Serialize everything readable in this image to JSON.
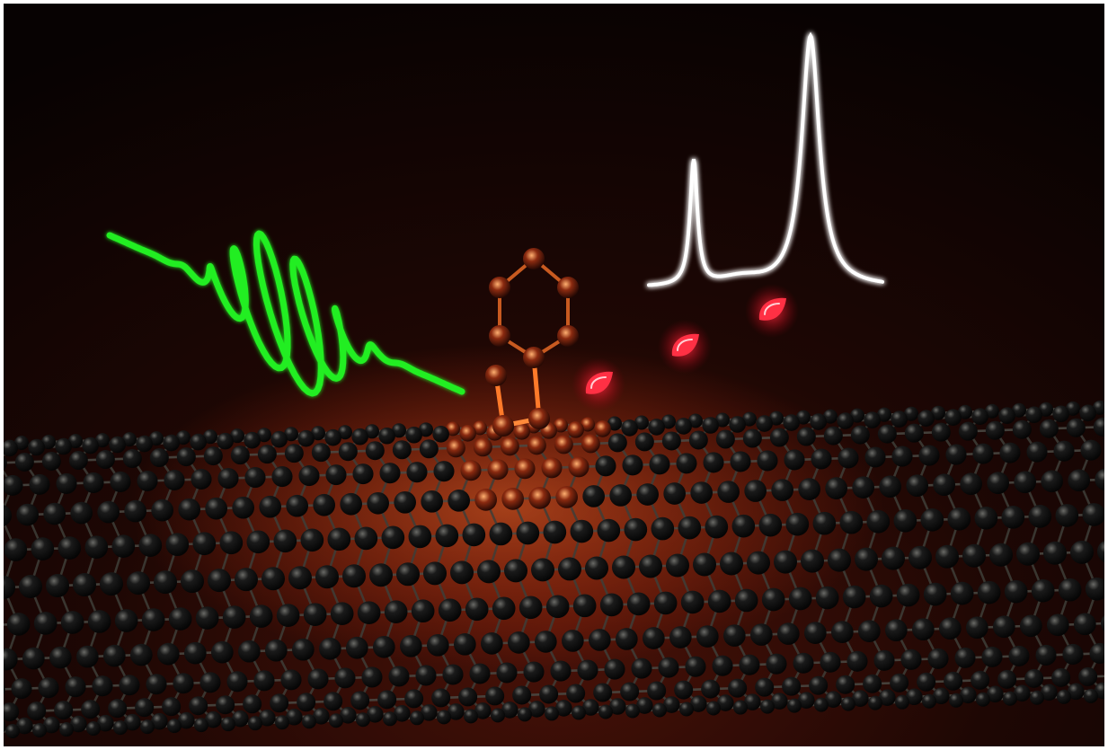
{
  "scene": {
    "colors": {
      "background_top": "#0a0303",
      "background_mid": "#1e0704",
      "background_bottom": "#3a0e08",
      "laser_pulse": "#22ee22",
      "spectrum_line": "#ffffff",
      "photon": "#ff3044",
      "atom": "#0c0c0c",
      "bond": "#4a4a44",
      "glow": "#ff5a1a"
    },
    "elements": [
      {
        "name": "laser-pulse-wave",
        "icon": "green-wave-packet"
      },
      {
        "name": "emission-spectrum",
        "icon": "two-peak-spectrum-curve"
      },
      {
        "name": "emitted-photon",
        "icon": "red-glowing-droplet",
        "count": 3
      },
      {
        "name": "aryl-ring",
        "icon": "benzene-ring-molecule"
      },
      {
        "name": "carbon-nanotube",
        "icon": "hexagonal-lattice-tube"
      }
    ]
  }
}
